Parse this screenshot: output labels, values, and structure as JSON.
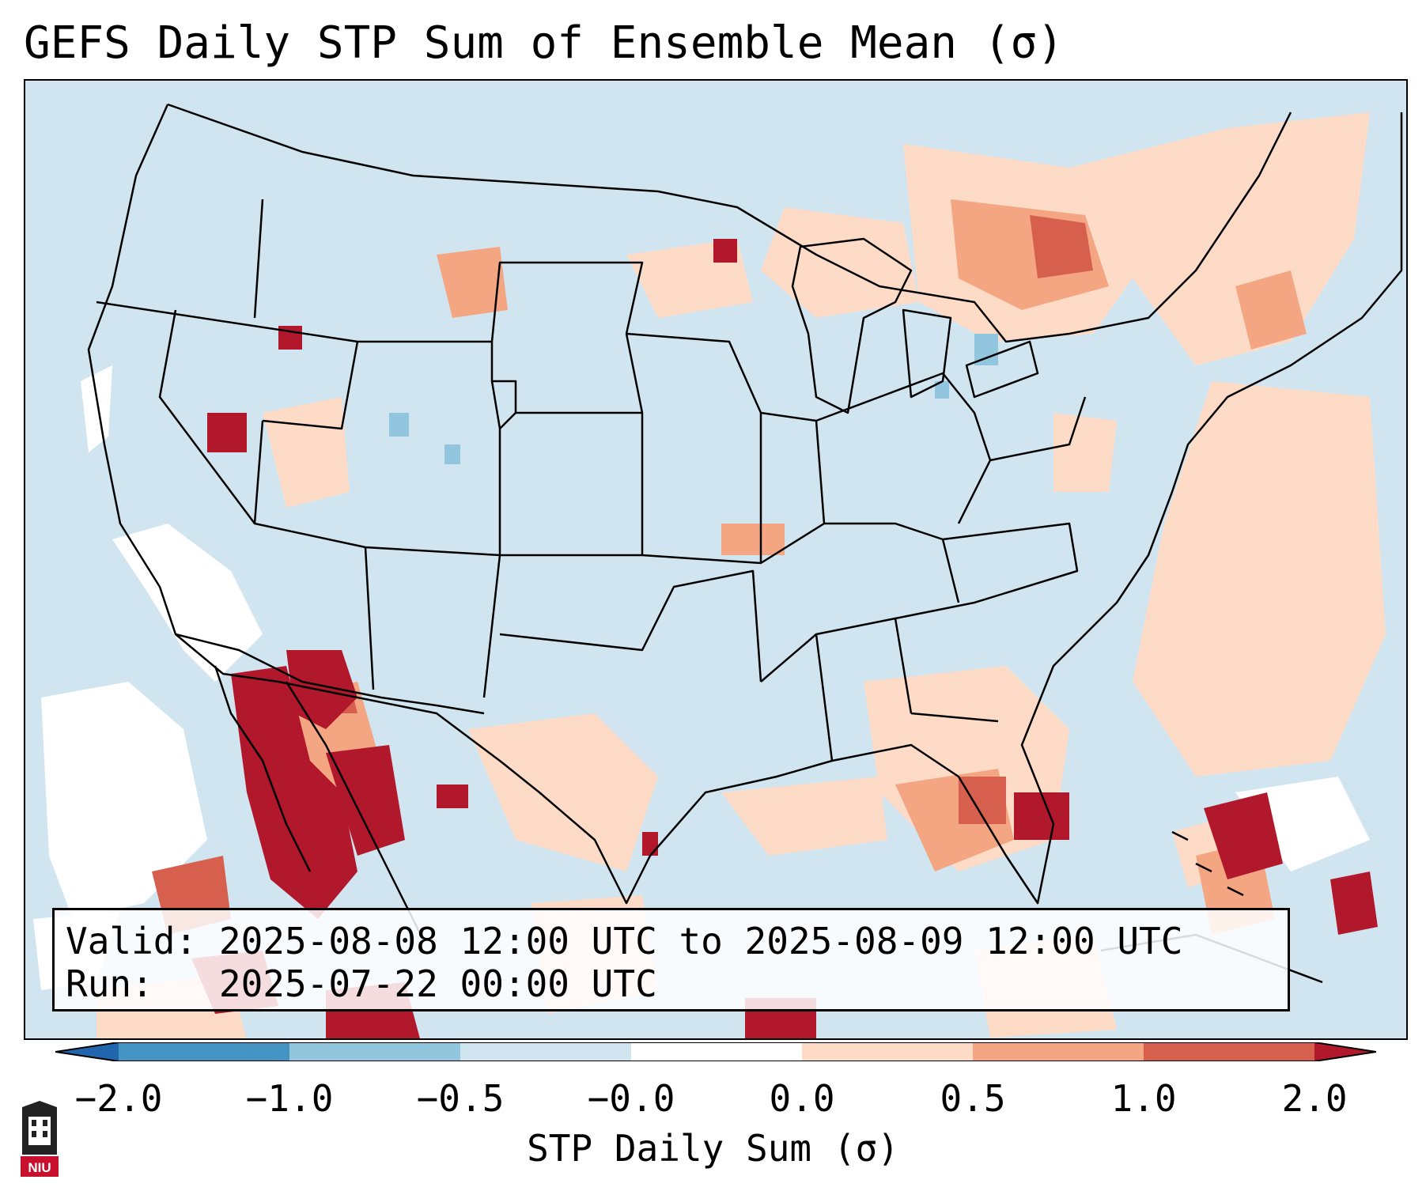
{
  "title": "GEFS Daily STP Sum of Ensemble Mean (σ)",
  "info": {
    "valid_label": "Valid:",
    "valid_value": "2025-08-08 12:00 UTC to 2025-08-09 12:00 UTC",
    "run_label": "Run:",
    "run_value": "2025-07-22 00:00 UTC"
  },
  "colorbar": {
    "label": "STP Daily Sum (σ)",
    "ticks": [
      "−2.0",
      "−1.0",
      "−0.5",
      "−0.0",
      "0.0",
      "0.5",
      "1.0",
      "2.0"
    ],
    "colors": [
      "#2166ac",
      "#4393c3",
      "#92c5de",
      "#d1e5f0",
      "#ffffff",
      "#fddbc7",
      "#f4a582",
      "#d6604d",
      "#b2182b"
    ],
    "extend": "both"
  },
  "map": {
    "region": "Continental United States",
    "ocean_color": "#d1e5f0",
    "field": "STP daily sum, ensemble-mean standardized anomaly"
  },
  "logo": {
    "text": "NIU"
  }
}
